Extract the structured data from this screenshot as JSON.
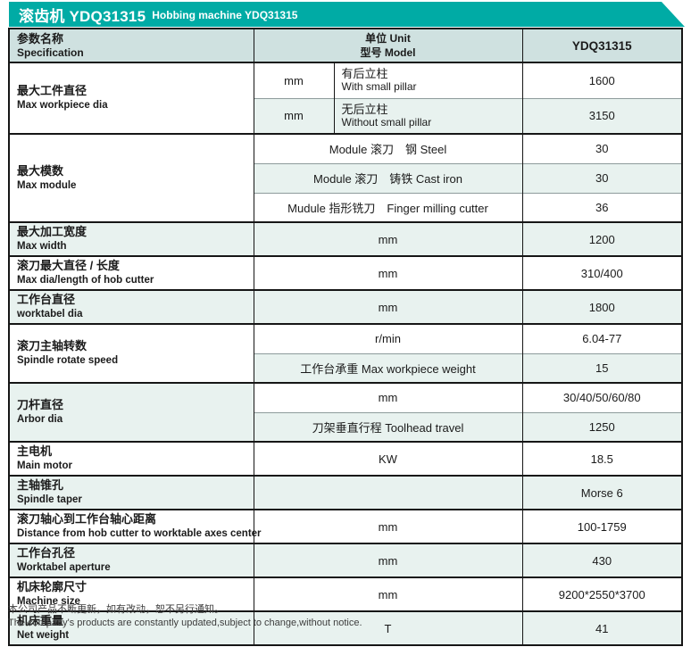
{
  "banner": {
    "title_zh": "滚齿机 YDQ31315",
    "title_en": "Hobbing machine YDQ31315"
  },
  "colors": {
    "accent_teal": "#00aba5",
    "header_row_bg": "#cfe1e0",
    "alt_row_bg": "#e8f2ef",
    "border_dark": "#161616",
    "border_light": "#8d9b9b"
  },
  "header": {
    "spec_zh": "参数名称",
    "spec_en": "Specification",
    "unit_label": "单位 Unit",
    "model_label": "型号 Model",
    "model_value": "YDQ31315"
  },
  "groups": [
    {
      "label_zh": "最大工件直径",
      "label_en": "Max workpiece dia",
      "label_tint": false,
      "subs": [
        {
          "split": true,
          "unit": "mm",
          "desc_zh": "有后立柱",
          "desc_en": "With small pillar",
          "value": "1600",
          "tint": false,
          "tall": true
        },
        {
          "split": true,
          "unit": "mm",
          "desc_zh": "无后立柱",
          "desc_en": "Without small pillar",
          "value": "3150",
          "tint": true,
          "tall": true
        }
      ]
    },
    {
      "label_zh": "最大模数",
      "label_en": "Max module",
      "label_tint": false,
      "subs": [
        {
          "mid": "Module 滚刀　钢 Steel",
          "value": "30",
          "tint": false
        },
        {
          "mid": "Module 滚刀　铸铁 Cast iron",
          "value": "30",
          "tint": true
        },
        {
          "mid": "Mudule 指形铣刀　Finger milling cutter",
          "value": "36",
          "tint": false
        }
      ]
    },
    {
      "label_zh": "最大加工宽度",
      "label_en": "Max width",
      "label_tint": true,
      "subs": [
        {
          "mid": "mm",
          "value": "1200",
          "tint": true
        }
      ]
    },
    {
      "label_zh": "滚刀最大直径 / 长度",
      "label_en": "Max dia/length of hob cutter",
      "label_tint": false,
      "subs": [
        {
          "mid": "mm",
          "value": "310/400",
          "tint": false
        }
      ]
    },
    {
      "label_zh": "工作台直径",
      "label_en": "worktabel dia",
      "label_tint": true,
      "subs": [
        {
          "mid": "mm",
          "value": "1800",
          "tint": true
        }
      ]
    },
    {
      "label_zh": "滚刀主轴转数",
      "label_en": "Spindle rotate speed",
      "label_tint": false,
      "subs": [
        {
          "mid": "r/min",
          "value": "6.04-77",
          "tint": false
        },
        {
          "mid": "工作台承重 Max workpiece weight",
          "value": "15",
          "tint": true
        }
      ]
    },
    {
      "label_zh": "刀杆直径",
      "label_en": "Arbor dia",
      "label_tint": true,
      "subs": [
        {
          "mid": "mm",
          "value": "30/40/50/60/80",
          "tint": false
        },
        {
          "mid": "刀架垂直行程 Toolhead travel",
          "value": "1250",
          "tint": true
        }
      ]
    },
    {
      "label_zh": "主电机",
      "label_en": "Main motor",
      "label_tint": false,
      "subs": [
        {
          "mid": "KW",
          "value": "18.5",
          "tint": false
        }
      ]
    },
    {
      "label_zh": "主轴锥孔",
      "label_en": "Spindle taper",
      "label_tint": true,
      "subs": [
        {
          "mid": "",
          "value": "Morse 6",
          "tint": true
        }
      ]
    },
    {
      "label_zh": "滚刀轴心到工作台轴心距离",
      "label_en": "Distance from hob cutter to worktable axes center",
      "label_tint": false,
      "subs": [
        {
          "mid": "mm",
          "value": "100-1759",
          "tint": false
        }
      ]
    },
    {
      "label_zh": "工作台孔径",
      "label_en": "Worktabel aperture",
      "label_tint": true,
      "subs": [
        {
          "mid": "mm",
          "value": "430",
          "tint": true
        }
      ]
    },
    {
      "label_zh": "机床轮廓尺寸",
      "label_en": "Machine size",
      "label_tint": false,
      "subs": [
        {
          "mid": "mm",
          "value": "9200*2550*3700",
          "tint": false
        }
      ]
    },
    {
      "label_zh": "机床重量",
      "label_en": "Net weight",
      "label_tint": true,
      "subs": [
        {
          "mid": "T",
          "value": "41",
          "tint": true
        }
      ]
    }
  ],
  "footer": {
    "line_zh": "本公司产品不断更新，如有改动，恕不另行通知。",
    "line_en": "The company's products are constantly updated,subject to change,without notice."
  }
}
